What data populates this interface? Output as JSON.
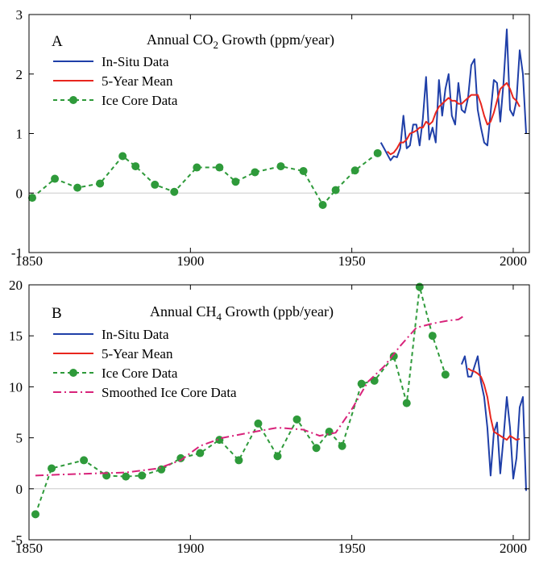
{
  "chart_data": [
    {
      "type": "line",
      "panel_label": "A",
      "title_prefix": "Annual CO",
      "title_sub": "2",
      "title_suffix": " Growth (ppm/year)",
      "xlim": [
        1850,
        2005
      ],
      "ylim": [
        -1,
        3
      ],
      "x_ticks": [
        "1850",
        "1900",
        "1950",
        "2000"
      ],
      "y_ticks": [
        "-1",
        "0",
        "1",
        "2",
        "3"
      ],
      "zero_line": true,
      "legend_position": "top-left",
      "series": [
        {
          "name": "In-Situ Data",
          "color": "#1f3fa8",
          "style": "solid",
          "x": [
            1959,
            1960,
            1961,
            1962,
            1963,
            1964,
            1965,
            1966,
            1967,
            1968,
            1969,
            1970,
            1971,
            1972,
            1973,
            1974,
            1975,
            1976,
            1977,
            1978,
            1979,
            1980,
            1981,
            1982,
            1983,
            1984,
            1985,
            1986,
            1987,
            1988,
            1989,
            1990,
            1991,
            1992,
            1993,
            1994,
            1995,
            1996,
            1997,
            1998,
            1999,
            2000,
            2001,
            2002,
            2003,
            2004
          ],
          "y": [
            0.85,
            0.75,
            0.65,
            0.55,
            0.62,
            0.6,
            0.75,
            1.3,
            0.75,
            0.8,
            1.15,
            1.15,
            0.8,
            1.25,
            1.95,
            0.9,
            1.1,
            0.85,
            1.9,
            1.3,
            1.75,
            2.0,
            1.3,
            1.15,
            1.85,
            1.4,
            1.35,
            1.6,
            2.15,
            2.25,
            1.4,
            1.1,
            0.85,
            0.8,
            1.35,
            1.9,
            1.85,
            1.2,
            1.85,
            2.75,
            1.4,
            1.3,
            1.55,
            2.4,
            2.0,
            1.0
          ]
        },
        {
          "name": "5-Year Mean",
          "color": "#e8261e",
          "style": "solid",
          "x": [
            1961,
            1962,
            1963,
            1964,
            1965,
            1966,
            1967,
            1968,
            1969,
            1970,
            1971,
            1972,
            1973,
            1974,
            1975,
            1976,
            1977,
            1978,
            1979,
            1980,
            1981,
            1982,
            1983,
            1984,
            1985,
            1986,
            1987,
            1988,
            1989,
            1990,
            1991,
            1992,
            1993,
            1994,
            1995,
            1996,
            1997,
            1998,
            1999,
            2000,
            2001,
            2002
          ],
          "y": [
            0.7,
            0.65,
            0.68,
            0.75,
            0.85,
            0.85,
            0.9,
            1.0,
            1.02,
            1.05,
            1.1,
            1.1,
            1.2,
            1.15,
            1.2,
            1.35,
            1.45,
            1.5,
            1.55,
            1.6,
            1.55,
            1.55,
            1.5,
            1.5,
            1.55,
            1.6,
            1.65,
            1.65,
            1.65,
            1.5,
            1.3,
            1.15,
            1.2,
            1.35,
            1.55,
            1.75,
            1.8,
            1.85,
            1.75,
            1.6,
            1.55,
            1.45
          ]
        },
        {
          "name": "Ice Core Data",
          "color": "#2e9a3a",
          "style": "dashed-markers",
          "x": [
            1851,
            1858,
            1865,
            1872,
            1879,
            1883,
            1889,
            1895,
            1902,
            1909,
            1914,
            1920,
            1928,
            1935,
            1941,
            1945,
            1951,
            1958
          ],
          "y": [
            -0.08,
            0.24,
            0.09,
            0.16,
            0.62,
            0.45,
            0.14,
            0.02,
            0.43,
            0.43,
            0.19,
            0.35,
            0.45,
            0.37,
            -0.2,
            0.05,
            0.38,
            0.67
          ]
        }
      ]
    },
    {
      "type": "line",
      "panel_label": "B",
      "title_prefix": "Annual CH",
      "title_sub": "4",
      "title_suffix": " Growth (ppb/year)",
      "xlim": [
        1850,
        2005
      ],
      "ylim": [
        -5,
        20
      ],
      "x_ticks": [
        "1850",
        "1900",
        "1950",
        "2000"
      ],
      "y_ticks": [
        "-5",
        "0",
        "5",
        "10",
        "15",
        "20"
      ],
      "zero_line": true,
      "legend_position": "top-left",
      "series": [
        {
          "name": "In-Situ Data",
          "color": "#1f3fa8",
          "style": "solid",
          "x": [
            1984,
            1985,
            1986,
            1987,
            1988,
            1989,
            1990,
            1991,
            1992,
            1993,
            1994,
            1995,
            1996,
            1997,
            1998,
            1999,
            2000,
            2001,
            2002,
            2003,
            2004
          ],
          "y": [
            12.2,
            13.0,
            11.0,
            11.0,
            12.0,
            13.0,
            10.5,
            9.0,
            6.0,
            1.3,
            5.5,
            6.5,
            1.5,
            5.0,
            9.0,
            6.0,
            1.0,
            3.0,
            8.0,
            9.0,
            -0.2
          ]
        },
        {
          "name": "5-Year Mean",
          "color": "#e8261e",
          "style": "solid",
          "x": [
            1986,
            1987,
            1988,
            1989,
            1990,
            1991,
            1992,
            1993,
            1994,
            1995,
            1996,
            1997,
            1998,
            1999,
            2000,
            2001,
            2002
          ],
          "y": [
            11.8,
            11.6,
            11.5,
            11.3,
            11.0,
            10.2,
            9.0,
            7.0,
            5.6,
            5.4,
            5.2,
            5.0,
            4.8,
            5.2,
            5.0,
            4.8,
            4.9
          ]
        },
        {
          "name": "Ice Core Data",
          "color": "#2e9a3a",
          "style": "dashed-markers",
          "x": [
            1852,
            1857,
            1867,
            1874,
            1880,
            1885,
            1891,
            1897,
            1903,
            1909,
            1915,
            1921,
            1927,
            1933,
            1939,
            1943,
            1947,
            1953,
            1957,
            1963,
            1967,
            1971,
            1975,
            1979
          ],
          "y": [
            -2.5,
            2.0,
            2.8,
            1.3,
            1.2,
            1.3,
            1.9,
            3.0,
            3.5,
            4.8,
            2.8,
            6.4,
            3.2,
            6.8,
            4.0,
            5.6,
            4.2,
            10.3,
            10.6,
            13.0,
            8.4,
            19.8,
            15.0,
            11.2
          ]
        },
        {
          "name": "Smoothed Ice Core Data",
          "color": "#d8237a",
          "style": "dash-dot",
          "x": [
            1852,
            1860,
            1870,
            1880,
            1890,
            1897,
            1903,
            1910,
            1920,
            1927,
            1935,
            1940,
            1945,
            1950,
            1955,
            1960,
            1965,
            1970,
            1975,
            1980,
            1983,
            1985
          ],
          "y": [
            1.3,
            1.4,
            1.5,
            1.6,
            2.0,
            2.8,
            4.2,
            5.0,
            5.6,
            6.0,
            5.8,
            5.2,
            5.5,
            7.8,
            10.5,
            12.0,
            14.0,
            15.8,
            16.2,
            16.5,
            16.6,
            17.0
          ]
        }
      ]
    }
  ]
}
